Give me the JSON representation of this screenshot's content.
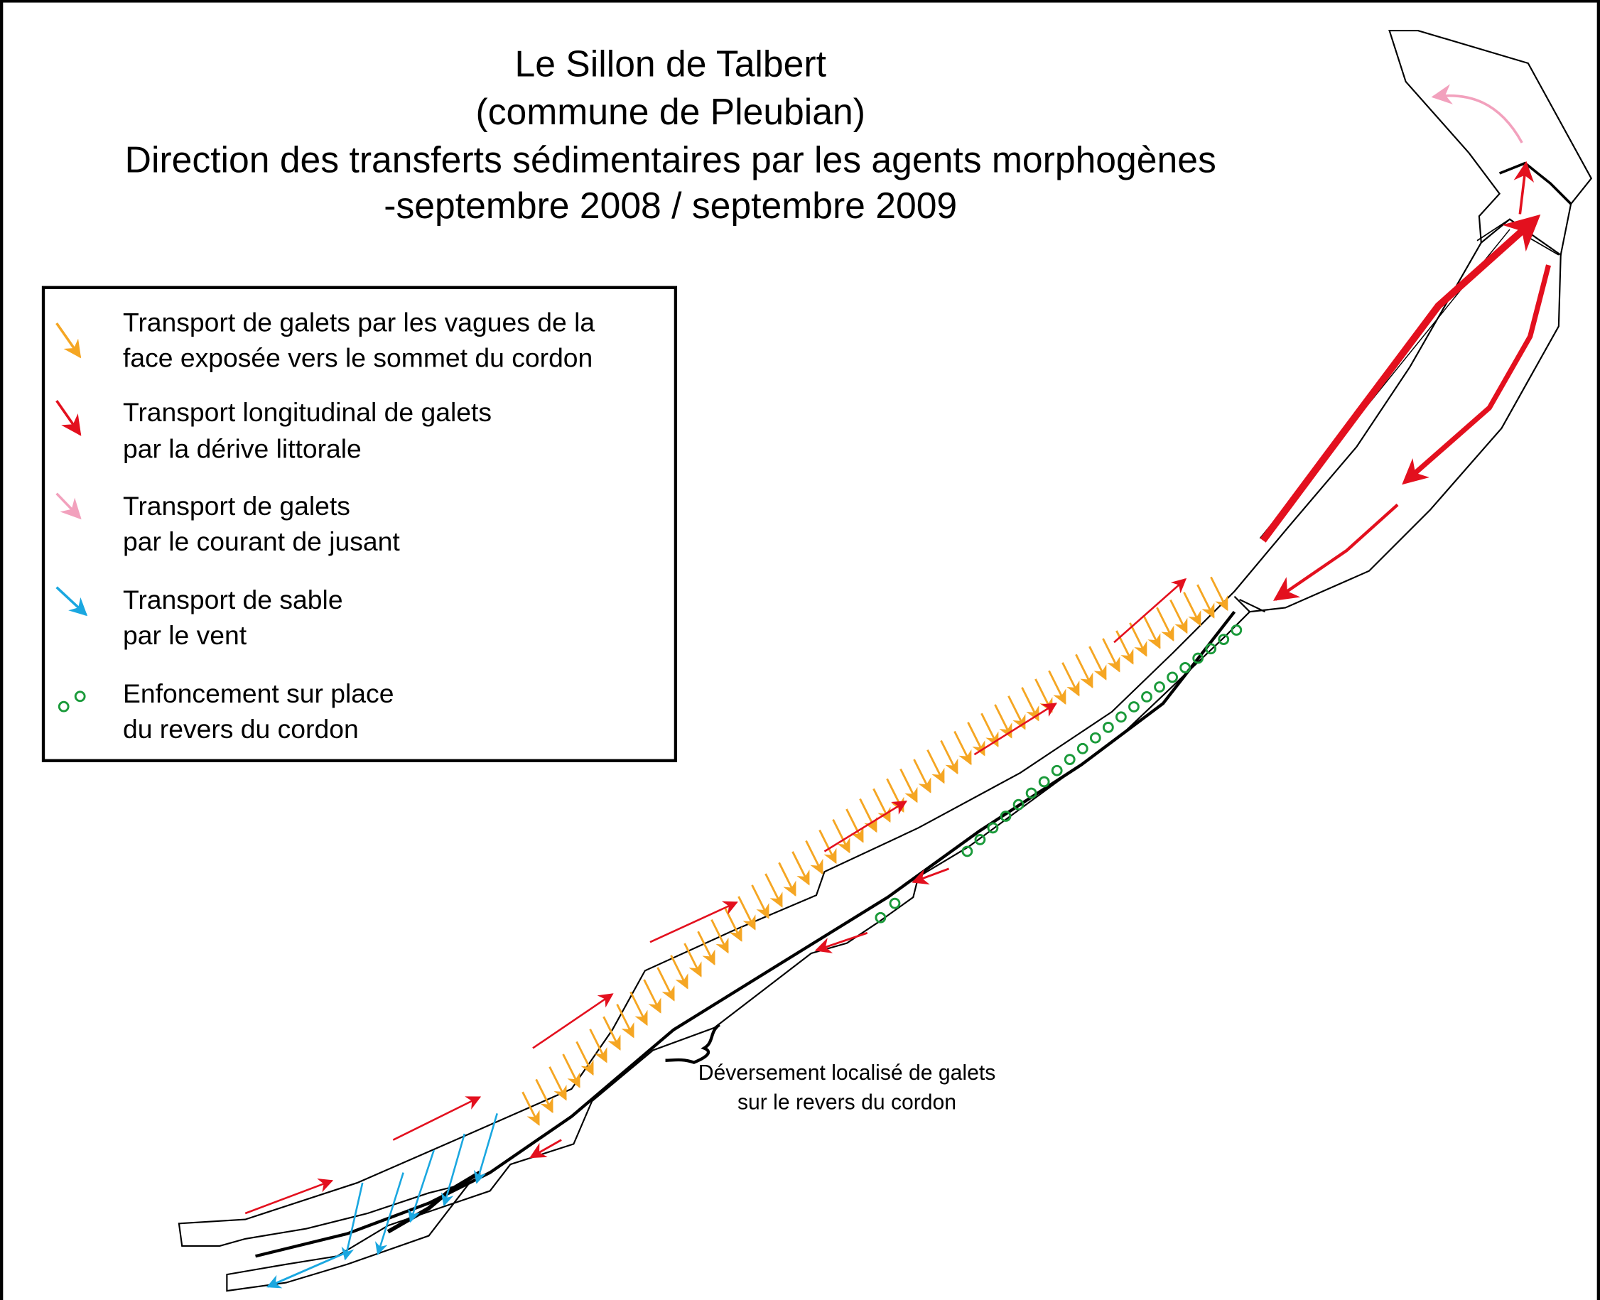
{
  "title": [
    "Le Sillon de Talbert",
    "(commune de Pleubian)",
    "Direction des transferts sédimentaires par les agents morphogènes",
    "-septembre 2008 / septembre 2009"
  ],
  "legend": [
    {
      "lines": [
        "Transport de galets par les vagues de la",
        "face exposée vers le sommet du cordon"
      ]
    },
    {
      "lines": [
        "Transport longitudinal de galets",
        "par la dérive littorale"
      ]
    },
    {
      "lines": [
        "Transport de galets",
        "par le courant de jusant"
      ]
    },
    {
      "lines": [
        "Transport de sable",
        "par le vent"
      ]
    },
    {
      "lines": [
        "Enfoncement sur place",
        "du revers du cordon"
      ]
    }
  ],
  "annotation": [
    "Déversement localisé de galets",
    "sur le revers du cordon"
  ]
}
